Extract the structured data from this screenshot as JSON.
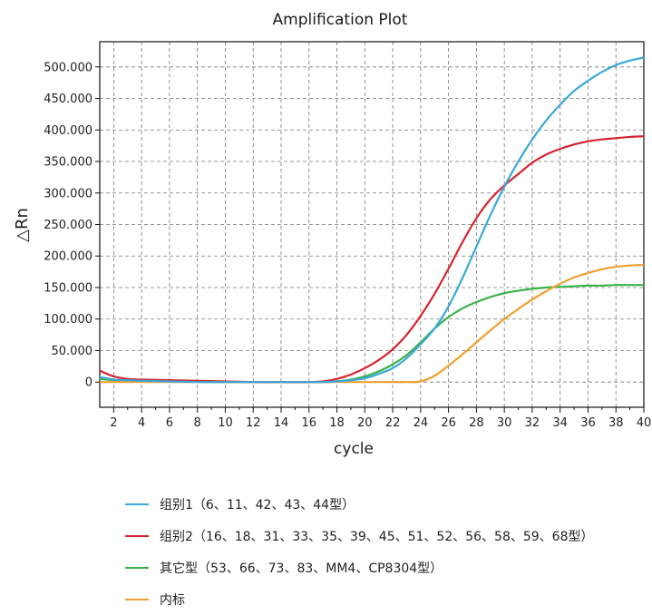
{
  "chart_data": {
    "type": "line",
    "title": "Amplification Plot",
    "xlabel": "cycle",
    "ylabel": "△Rn",
    "xlim": [
      1,
      40
    ],
    "ylim": [
      -40,
      540
    ],
    "x_ticks": [
      "2",
      "4",
      "6",
      "8",
      "10",
      "12",
      "14",
      "16",
      "18",
      "20",
      "22",
      "24",
      "26",
      "28",
      "30",
      "32",
      "34",
      "36",
      "38",
      "40"
    ],
    "y_ticks": [
      "0",
      "50.000",
      "100.000",
      "150.000",
      "200.000",
      "250.000",
      "300.000",
      "350.000",
      "400.000",
      "450.000",
      "500.000"
    ],
    "grid": true,
    "legend_position": "bottom",
    "series": [
      {
        "name": "组别1（6、11、42、43、44型）",
        "color": "#3aa8d8",
        "x": [
          1,
          2,
          3,
          4,
          6,
          8,
          10,
          12,
          14,
          16,
          17,
          18,
          19,
          20,
          21,
          22,
          23,
          24,
          25,
          26,
          27,
          28,
          29,
          30,
          31,
          32,
          33,
          34,
          35,
          36,
          37,
          38,
          39,
          40
        ],
        "y": [
          8,
          4,
          3,
          2,
          1,
          0,
          0,
          0,
          0,
          0,
          0,
          1,
          3,
          6,
          13,
          22,
          38,
          60,
          85,
          120,
          165,
          215,
          265,
          310,
          350,
          385,
          415,
          440,
          462,
          478,
          492,
          503,
          510,
          515
        ]
      },
      {
        "name": "组别2（16、18、31、33、35、39、45、51、52、56、58、59、68型）",
        "color": "#d8232f",
        "x": [
          1,
          2,
          3,
          4,
          6,
          8,
          10,
          12,
          14,
          16,
          17,
          18,
          19,
          20,
          21,
          22,
          23,
          24,
          25,
          26,
          27,
          28,
          29,
          30,
          31,
          32,
          33,
          34,
          35,
          36,
          37,
          38,
          39,
          40
        ],
        "y": [
          18,
          9,
          5,
          4,
          3,
          2,
          1,
          0,
          0,
          0,
          1,
          5,
          12,
          22,
          35,
          52,
          75,
          105,
          140,
          180,
          222,
          260,
          290,
          312,
          330,
          348,
          361,
          370,
          377,
          382,
          385,
          387,
          389,
          390
        ]
      },
      {
        "name": "其它型（53、66、73、83、MM4、CP8304型）",
        "color": "#3bb14a",
        "x": [
          1,
          2,
          3,
          4,
          6,
          8,
          10,
          12,
          14,
          16,
          17,
          18,
          19,
          20,
          21,
          22,
          23,
          24,
          25,
          26,
          27,
          28,
          29,
          30,
          31,
          32,
          33,
          34,
          35,
          36,
          37,
          38,
          39,
          40
        ],
        "y": [
          5,
          3,
          2,
          2,
          1,
          1,
          0,
          0,
          0,
          0,
          0,
          1,
          4,
          9,
          17,
          28,
          43,
          63,
          85,
          103,
          117,
          127,
          135,
          141,
          145,
          148,
          150,
          151,
          152,
          153,
          153,
          154,
          154,
          154
        ]
      },
      {
        "name": "内标",
        "color": "#f0a030",
        "x": [
          1,
          2,
          4,
          6,
          8,
          10,
          12,
          14,
          16,
          18,
          20,
          22,
          23,
          24,
          25,
          26,
          27,
          28,
          29,
          30,
          31,
          32,
          33,
          34,
          35,
          36,
          37,
          38,
          39,
          40
        ],
        "y": [
          0,
          0,
          0,
          0,
          0,
          0,
          0,
          0,
          0,
          0,
          0,
          0,
          0,
          1,
          10,
          26,
          44,
          63,
          82,
          100,
          116,
          131,
          144,
          156,
          166,
          173,
          179,
          183,
          185,
          186
        ]
      }
    ]
  }
}
